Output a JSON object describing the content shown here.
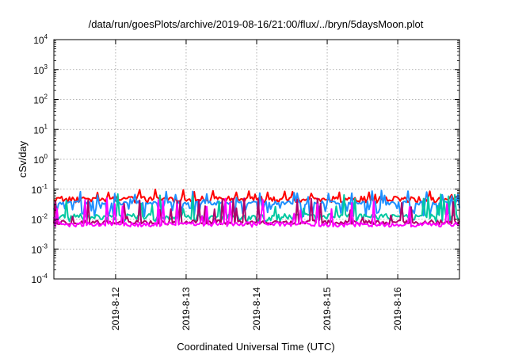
{
  "chart_data": {
    "type": "line",
    "title": "/data/run/goesPlots/archive/2019-08-16/21:00/flux/../bryn/5daysMoon.plot",
    "xlabel": "Coordinated Universal Time (UTC)",
    "ylabel": "cSv/day",
    "yscale": "log",
    "ylim": [
      0.0001,
      10000
    ],
    "xlim": [
      "2019-08-11T03:00",
      "2019-08-16T21:00"
    ],
    "grid": true,
    "legend": "none",
    "y_ticks": [
      {
        "base": "10",
        "exp": "4",
        "value": 10000
      },
      {
        "base": "10",
        "exp": "3",
        "value": 1000
      },
      {
        "base": "10",
        "exp": "2",
        "value": 100
      },
      {
        "base": "10",
        "exp": "1",
        "value": 10
      },
      {
        "base": "10",
        "exp": "0",
        "value": 1
      },
      {
        "base": "10",
        "exp": "-1",
        "value": 0.1
      },
      {
        "base": "10",
        "exp": "-2",
        "value": 0.01
      },
      {
        "base": "10",
        "exp": "-3",
        "value": 0.001
      },
      {
        "base": "10",
        "exp": "-4",
        "value": 0.0001
      }
    ],
    "x_ticks": [
      {
        "label": "2019-8-12",
        "value": "2019-08-12T00:00"
      },
      {
        "label": "2019-8-13",
        "value": "2019-08-13T00:00"
      },
      {
        "label": "2019-8-14",
        "value": "2019-08-14T00:00"
      },
      {
        "label": "2019-8-15",
        "value": "2019-08-15T00:00"
      },
      {
        "label": "2019-8-16",
        "value": "2019-08-16T00:00"
      }
    ],
    "series_style": [
      {
        "color": "#ff0000",
        "base": 0.05,
        "spike_to": 0.1,
        "dip_to": 0.035
      },
      {
        "color": "#1e90ff",
        "base": 0.035,
        "spike_to": 0.09,
        "dip_to": 0.012
      },
      {
        "color": "#00c8a0",
        "base": 0.013,
        "spike_to": 0.07,
        "dip_to": 0.008
      },
      {
        "color": "#b0006a",
        "base": 0.008,
        "spike_to": 0.05,
        "dip_to": 0.0065
      },
      {
        "color": "#ff00ff",
        "base": 0.007,
        "spike_to": 0.05,
        "dip_to": 0.0055
      }
    ]
  }
}
